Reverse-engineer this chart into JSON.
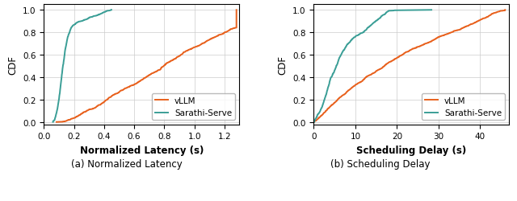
{
  "plot1": {
    "xlabel": "Normalized Latency (s)",
    "ylabel": "CDF",
    "xlim": [
      0,
      1.3
    ],
    "ylim": [
      -0.02,
      1.05
    ],
    "xticks": [
      0.0,
      0.2,
      0.4,
      0.6,
      0.8,
      1.0,
      1.2
    ],
    "yticks": [
      0.0,
      0.2,
      0.4,
      0.6,
      0.8,
      1.0
    ],
    "caption": "(a) Normalized Latency",
    "vllm_color": "#E8601C",
    "sarathi_color": "#3A9E96"
  },
  "plot2": {
    "xlabel": "Scheduling Delay (s)",
    "ylabel": "CDF",
    "xlim": [
      0,
      47
    ],
    "ylim": [
      -0.02,
      1.05
    ],
    "xticks": [
      0,
      10,
      20,
      30,
      40
    ],
    "yticks": [
      0.0,
      0.2,
      0.4,
      0.6,
      0.8,
      1.0
    ],
    "caption": "(b) Scheduling Delay",
    "vllm_color": "#E8601C",
    "sarathi_color": "#3A9E96"
  },
  "legend_labels": [
    "vLLM",
    "Sarathi-Serve"
  ],
  "background_color": "#ffffff"
}
